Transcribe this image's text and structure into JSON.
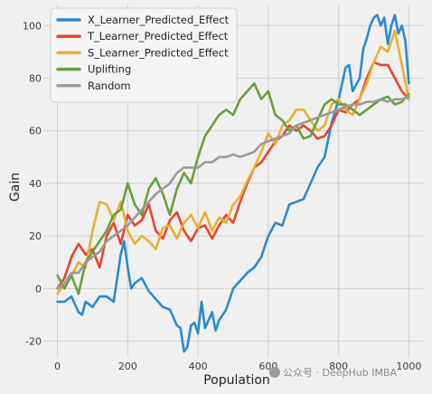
{
  "chart_data": {
    "type": "line",
    "title": "",
    "xlabel": "Population",
    "ylabel": "Gain",
    "xlim": [
      -40,
      1040
    ],
    "ylim": [
      -26,
      108
    ],
    "xticks": [
      0,
      200,
      400,
      600,
      800,
      1000
    ],
    "yticks": [
      -20,
      0,
      20,
      40,
      60,
      80,
      100
    ],
    "grid": true,
    "legend_position": "top-left",
    "background": "#f0f0f0",
    "series": [
      {
        "name": "X_Learner_Predicted_Effect",
        "color": "#2a8ad2",
        "x": [
          0,
          20,
          40,
          60,
          70,
          80,
          100,
          120,
          140,
          160,
          170,
          180,
          190,
          200,
          210,
          220,
          240,
          260,
          280,
          300,
          320,
          340,
          350,
          360,
          370,
          380,
          390,
          400,
          410,
          420,
          430,
          440,
          450,
          460,
          480,
          500,
          520,
          540,
          560,
          580,
          600,
          620,
          640,
          660,
          680,
          700,
          720,
          740,
          760,
          780,
          800,
          820,
          830,
          840,
          860,
          870,
          880,
          890,
          900,
          910,
          920,
          930,
          940,
          950,
          960,
          970,
          980,
          990,
          1000
        ],
        "y": [
          -5,
          -5,
          -3,
          -9,
          -10,
          -5,
          -7,
          -3,
          -3,
          -5,
          4,
          13,
          18,
          8,
          0,
          2,
          4,
          -1,
          -4,
          -7,
          -8,
          -14,
          -15,
          -24,
          -22,
          -14,
          -13,
          -17,
          -5,
          -15,
          -12,
          -9,
          -16,
          -12,
          -8,
          0,
          3,
          6,
          8,
          12,
          20,
          25,
          24,
          32,
          33,
          34,
          40,
          46,
          50,
          63,
          72,
          84,
          85,
          75,
          80,
          91,
          95,
          100,
          103,
          104,
          100,
          103,
          93,
          100,
          104,
          97,
          100,
          94,
          78
        ]
      },
      {
        "name": "T_Learner_Predicted_Effect",
        "color": "#e8452c",
        "x": [
          0,
          20,
          40,
          60,
          80,
          100,
          120,
          140,
          160,
          180,
          200,
          220,
          240,
          260,
          280,
          300,
          320,
          340,
          360,
          380,
          400,
          420,
          440,
          460,
          480,
          500,
          520,
          540,
          560,
          580,
          600,
          620,
          640,
          660,
          680,
          700,
          720,
          740,
          760,
          780,
          800,
          820,
          840,
          860,
          880,
          900,
          920,
          940,
          960,
          980,
          1000
        ],
        "y": [
          0,
          4,
          12,
          17,
          13,
          15,
          8,
          20,
          25,
          17,
          28,
          24,
          26,
          32,
          22,
          19,
          26,
          29,
          22,
          18,
          23,
          24,
          19,
          24,
          28,
          25,
          33,
          40,
          46,
          48,
          52,
          56,
          58,
          62,
          60,
          62,
          60,
          57,
          58,
          62,
          68,
          67,
          70,
          72,
          80,
          86,
          85,
          85,
          80,
          75,
          72
        ]
      },
      {
        "name": "S_Learner_Predicted_Effect",
        "color": "#e8b034",
        "x": [
          0,
          20,
          40,
          60,
          80,
          100,
          120,
          140,
          160,
          180,
          200,
          220,
          240,
          260,
          280,
          300,
          320,
          340,
          360,
          380,
          400,
          420,
          440,
          460,
          480,
          500,
          520,
          540,
          560,
          580,
          600,
          620,
          640,
          660,
          680,
          700,
          720,
          740,
          760,
          780,
          800,
          820,
          840,
          860,
          880,
          900,
          920,
          940,
          960,
          980,
          1000
        ],
        "y": [
          -2,
          2,
          5,
          10,
          8,
          22,
          33,
          32,
          26,
          33,
          22,
          17,
          20,
          18,
          15,
          23,
          24,
          19,
          25,
          28,
          23,
          29,
          22,
          27,
          25,
          32,
          35,
          41,
          46,
          52,
          59,
          55,
          62,
          64,
          68,
          68,
          64,
          60,
          62,
          70,
          72,
          68,
          66,
          72,
          78,
          86,
          92,
          90,
          98,
          85,
          72
        ]
      },
      {
        "name": "Uplifting",
        "color": "#6a9e3b",
        "x": [
          0,
          20,
          40,
          60,
          80,
          100,
          120,
          140,
          160,
          180,
          200,
          220,
          240,
          260,
          280,
          300,
          320,
          340,
          360,
          380,
          400,
          420,
          440,
          460,
          480,
          500,
          520,
          540,
          560,
          580,
          600,
          620,
          640,
          660,
          680,
          700,
          720,
          740,
          760,
          780,
          800,
          820,
          840,
          860,
          880,
          900,
          920,
          940,
          960,
          980,
          1000
        ],
        "y": [
          5,
          0,
          5,
          -2,
          10,
          14,
          18,
          22,
          28,
          30,
          40,
          32,
          28,
          38,
          42,
          36,
          28,
          38,
          44,
          40,
          50,
          58,
          62,
          66,
          68,
          66,
          72,
          75,
          78,
          72,
          75,
          66,
          64,
          60,
          62,
          57,
          58,
          64,
          70,
          72,
          70,
          70,
          68,
          66,
          68,
          70,
          72,
          73,
          70,
          71,
          74
        ]
      },
      {
        "name": "Random",
        "color": "#9a9a9a",
        "x": [
          0,
          20,
          40,
          60,
          80,
          100,
          120,
          140,
          160,
          180,
          200,
          220,
          240,
          260,
          280,
          300,
          320,
          340,
          360,
          380,
          400,
          420,
          440,
          460,
          480,
          500,
          520,
          540,
          560,
          580,
          600,
          620,
          640,
          660,
          680,
          700,
          720,
          740,
          760,
          780,
          800,
          820,
          840,
          860,
          880,
          900,
          920,
          940,
          960,
          980,
          1000
        ],
        "y": [
          0,
          2,
          6,
          6,
          10,
          12,
          14,
          18,
          20,
          22,
          24,
          27,
          30,
          33,
          36,
          38,
          40,
          44,
          46,
          46,
          46,
          48,
          48,
          50,
          50,
          51,
          50,
          51,
          52,
          55,
          56,
          57,
          58,
          59,
          62,
          63,
          64,
          65,
          66,
          67,
          68,
          69,
          70,
          70,
          71,
          71,
          72,
          71,
          72,
          72,
          73
        ]
      }
    ]
  },
  "watermark": {
    "icon": "wechat-icon",
    "text": "公众号 · DeepHub IMBA"
  }
}
